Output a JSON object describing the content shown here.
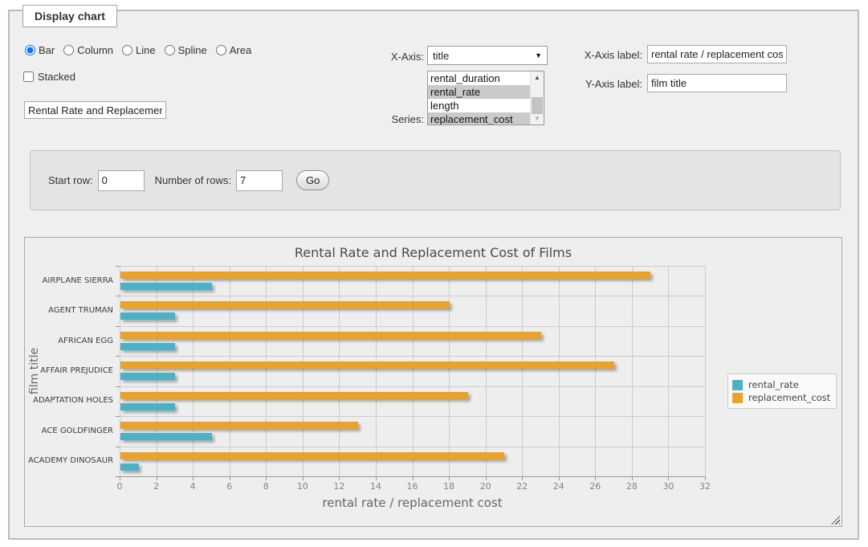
{
  "panel": {
    "legend": "Display chart"
  },
  "icons": {
    "dropdown": "▼",
    "scroll_up": "▲",
    "scroll_down": "▼"
  },
  "chart_type": {
    "options": [
      {
        "label": "Bar",
        "selected": true
      },
      {
        "label": "Column",
        "selected": false
      },
      {
        "label": "Line",
        "selected": false
      },
      {
        "label": "Spline",
        "selected": false
      },
      {
        "label": "Area",
        "selected": false
      }
    ],
    "stacked_label": "Stacked",
    "stacked_checked": false
  },
  "title_input": {
    "value": "Rental Rate and Replacement Cost of Films"
  },
  "axis_controls": {
    "x_axis_label_text": "X-Axis:",
    "x_axis_value": "title",
    "series_label_text": "Series:",
    "series_options": [
      {
        "label": "rental_duration",
        "selected": false
      },
      {
        "label": "rental_rate",
        "selected": true
      },
      {
        "label": "length",
        "selected": false
      },
      {
        "label": "replacement_cost",
        "selected": true
      }
    ],
    "x_axis_field_label": "X-Axis label:",
    "x_axis_field_value": "rental rate / replacement cost",
    "y_axis_field_label": "Y-Axis label:",
    "y_axis_field_value": "film title"
  },
  "row_controls": {
    "start_row_label": "Start row:",
    "start_row_value": "0",
    "num_rows_label": "Number of rows:",
    "num_rows_value": "7",
    "go_label": "Go"
  },
  "chart_data": {
    "type": "bar",
    "orientation": "horizontal",
    "title": "Rental Rate and Replacement Cost of Films",
    "categories": [
      "AIRPLANE SIERRA",
      "AGENT TRUMAN",
      "AFRICAN EGG",
      "AFFAIR PREJUDICE",
      "ADAPTATION HOLES",
      "ACE GOLDFINGER",
      "ACADEMY DINOSAUR"
    ],
    "series": [
      {
        "name": "rental_rate",
        "color": "#4bb2c5",
        "values": [
          4.99,
          2.99,
          2.99,
          2.99,
          2.99,
          4.99,
          0.99
        ]
      },
      {
        "name": "replacement_cost",
        "color": "#eaa228",
        "values": [
          28.99,
          17.99,
          22.99,
          26.99,
          18.99,
          12.99,
          20.99
        ]
      }
    ],
    "xlabel": "rental rate / replacement cost",
    "ylabel": "film title",
    "xlim": [
      0,
      32
    ],
    "x_ticks": [
      0,
      2,
      4,
      6,
      8,
      10,
      12,
      14,
      16,
      18,
      20,
      22,
      24,
      26,
      28,
      30,
      32
    ],
    "legend_position": "right",
    "grid": true
  }
}
